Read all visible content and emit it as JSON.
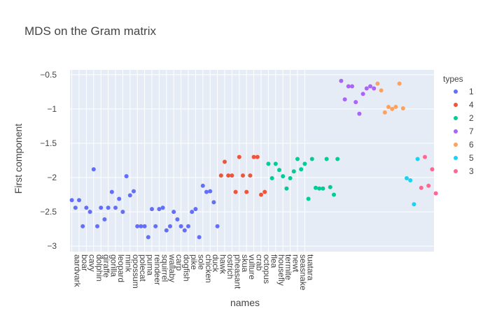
{
  "chart_data": {
    "type": "scatter",
    "title": "MDS on the Gram matrix",
    "xlabel": "names",
    "ylabel": "First component",
    "ylim": [
      -3.08,
      -0.43
    ],
    "yticks": [
      -0.5,
      -1,
      -1.5,
      -2,
      -2.5,
      -3
    ],
    "ytick_labels": [
      "−0.5",
      "−1",
      "−1.5",
      "−2",
      "−2.5",
      "−3"
    ],
    "xtick_labels": [
      "aardvark",
      "boar",
      "cavy",
      "dolphin",
      "giraffe",
      "gorilla",
      "leopard",
      "mink",
      "opossum",
      "polecat",
      "puma",
      "reindeer",
      "squirrel",
      "wallaby",
      "carp",
      "dogfish",
      "pike",
      "sole",
      "chicken",
      "duck",
      "hawk",
      "ostrich",
      "pheasant",
      "skua",
      "vulture",
      "crab",
      "octopus",
      "flea",
      "housefly",
      "termite",
      "newt",
      "seasnake",
      "tuatara"
    ],
    "n_categories": 100,
    "grid": true,
    "legend_position": "top-right",
    "legend_title": "types",
    "series": [
      {
        "name": "1",
        "color": "#636efa",
        "values": [
          -2.33,
          -2.44,
          -2.33,
          -2.71,
          -2.44,
          -2.5,
          -1.88,
          -2.71,
          -2.44,
          -2.61,
          -2.44,
          -2.21,
          -2.44,
          -2.31,
          -2.5,
          -1.98,
          -2.26,
          -2.2,
          -2.71,
          -2.71,
          -2.71,
          -2.87,
          -2.46,
          -2.71,
          -2.46,
          -2.44,
          -2.77,
          -2.71,
          -2.5,
          -2.61,
          -2.71,
          -2.77,
          -2.71,
          -2.5,
          -2.46,
          -2.87,
          -2.12,
          -2.21,
          -2.2,
          -2.36,
          -2.71
        ]
      },
      {
        "name": "4",
        "color": "#ef553b",
        "values": [
          -1.97,
          -1.77,
          -1.97,
          -1.97,
          -2.21,
          -1.7,
          -1.97,
          -2.21,
          -1.97,
          -1.7,
          -1.7,
          -2.25,
          -2.21
        ]
      },
      {
        "name": "2",
        "color": "#00cc96",
        "values": [
          -1.8,
          -2.01,
          -1.8,
          -1.89,
          -1.98,
          -2.16,
          -2.01,
          -1.91,
          -1.73,
          -1.88,
          -1.8,
          -2.31,
          -1.73,
          -2.15,
          -2.16,
          -2.16,
          -1.73,
          -2.14,
          -2.25,
          -1.73
        ]
      },
      {
        "name": "7",
        "color": "#ab63fa",
        "values": [
          -0.59,
          -0.86,
          -0.67,
          -0.67,
          -0.9,
          -1.07,
          -0.78,
          -0.7,
          -0.67,
          -0.7
        ]
      },
      {
        "name": "6",
        "color": "#ffa15a",
        "values": [
          -0.63,
          -0.73,
          -1.05,
          -0.97,
          -1.0,
          -0.97,
          -0.63,
          -0.99
        ]
      },
      {
        "name": "5",
        "color": "#19d3f3",
        "values": [
          -2.01,
          -2.04,
          -2.39,
          -1.73
        ]
      },
      {
        "name": "3",
        "color": "#ff6692",
        "values": [
          -2.15,
          -1.7,
          -2.12,
          -1.88,
          -2.23
        ]
      }
    ]
  }
}
